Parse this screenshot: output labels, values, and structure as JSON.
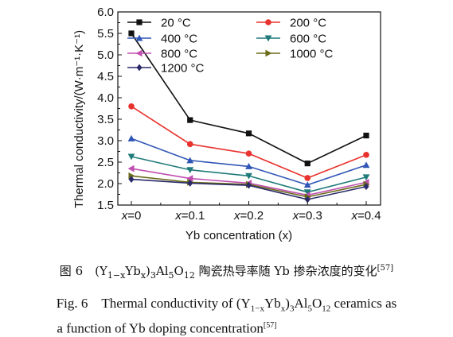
{
  "chart_data": {
    "type": "line",
    "categories": [
      "x=0",
      "x=0.1",
      "x=0.2",
      "x=0.3",
      "x=0.4"
    ],
    "xlabel": "Yb concentration (x)",
    "ylabel": "Thermal conductivity/(W·m⁻¹·K⁻¹)",
    "ylim": [
      1.5,
      6.0
    ],
    "yticks": [
      "1.5",
      "2.0",
      "2.5",
      "3.0",
      "3.5",
      "4.0",
      "4.5",
      "5.0",
      "5.5",
      "6.0"
    ],
    "legend_position": "top",
    "series": [
      {
        "name": "20 °C",
        "color": "#111111",
        "marker": "square",
        "values": [
          5.5,
          3.48,
          3.17,
          2.47,
          3.12
        ]
      },
      {
        "name": "200 °C",
        "color": "#e8322d",
        "marker": "circle",
        "values": [
          3.8,
          2.92,
          2.7,
          2.13,
          2.67
        ]
      },
      {
        "name": "400 °C",
        "color": "#2f55b5",
        "marker": "triangle-up",
        "values": [
          3.05,
          2.54,
          2.4,
          1.97,
          2.43
        ]
      },
      {
        "name": "600 °C",
        "color": "#1f7a7a",
        "marker": "triangle-down",
        "values": [
          2.63,
          2.32,
          2.18,
          1.8,
          2.15
        ]
      },
      {
        "name": "800 °C",
        "color": "#c04fb0",
        "marker": "triangle-left",
        "values": [
          2.35,
          2.12,
          2.01,
          1.73,
          2.03
        ]
      },
      {
        "name": "1000 °C",
        "color": "#6b6b1a",
        "marker": "triangle-right",
        "values": [
          2.18,
          2.03,
          1.98,
          1.69,
          1.98
        ]
      },
      {
        "name": "1200 °C",
        "color": "#2a2a6a",
        "marker": "diamond",
        "values": [
          2.1,
          2.01,
          1.96,
          1.63,
          1.93
        ]
      }
    ]
  },
  "caption": {
    "cn": {
      "prefix": "图 6　(Y",
      "sub1": "1−x",
      "mid1": "Yb",
      "sub2": "x",
      "mid2": ")",
      "sub3": "3",
      "mid3": "Al",
      "sub4": "5",
      "mid4": "O",
      "sub5": "12",
      "suffix": " 陶瓷热导率随 Yb 掺杂浓度的变化",
      "ref": "[57]"
    },
    "en": {
      "prefix": "Fig. 6　Thermal conductivity of (Y",
      "sub1": "1−x",
      "mid1": "Yb",
      "sub2": "x",
      "mid2": ")",
      "sub3": "3",
      "mid3": "Al",
      "sub4": "5",
      "mid4": "O",
      "sub5": "12",
      "suffix": " ceramics as",
      "line2": "a function of Yb doping concentration",
      "ref": "[57]"
    }
  }
}
